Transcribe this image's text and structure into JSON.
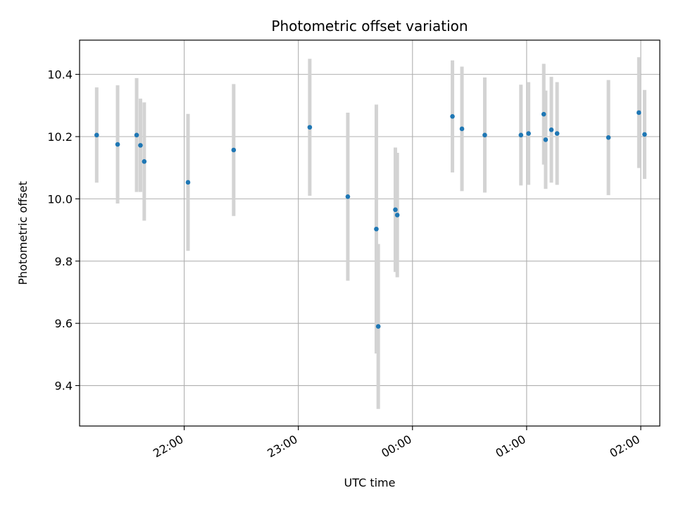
{
  "chart_data": {
    "type": "scatter",
    "title": "Photometric offset variation",
    "xlabel": "UTC time",
    "ylabel": "Photometric offset",
    "x_axis_type": "time",
    "x_range": [
      "21:05",
      "02:10"
    ],
    "ylim": [
      9.27,
      10.51
    ],
    "x_ticks": [
      "22:00",
      "23:00",
      "00:00",
      "01:00",
      "02:00"
    ],
    "y_ticks": [
      "9.4",
      "9.6",
      "9.8",
      "10.0",
      "10.2",
      "10.4"
    ],
    "grid": true,
    "point_color": "#1f77b4",
    "errorbar_color": "#d3d3d3",
    "points": [
      {
        "time": "21:14",
        "y": 10.205,
        "err": 0.153
      },
      {
        "time": "21:25",
        "y": 10.175,
        "err": 0.19
      },
      {
        "time": "21:35",
        "y": 10.205,
        "err": 0.183
      },
      {
        "time": "21:37",
        "y": 10.172,
        "err": 0.15
      },
      {
        "time": "21:39",
        "y": 10.12,
        "err": 0.19
      },
      {
        "time": "22:02",
        "y": 10.053,
        "err": 0.22
      },
      {
        "time": "22:26",
        "y": 10.157,
        "err": 0.212
      },
      {
        "time": "23:06",
        "y": 10.23,
        "err": 0.22
      },
      {
        "time": "23:26",
        "y": 10.007,
        "err": 0.27
      },
      {
        "time": "23:41",
        "y": 9.903,
        "err": 0.4
      },
      {
        "time": "23:42",
        "y": 9.59,
        "err": 0.265
      },
      {
        "time": "23:51",
        "y": 9.965,
        "err": 0.2
      },
      {
        "time": "23:52",
        "y": 9.948,
        "err": 0.2
      },
      {
        "time": "00:21",
        "y": 10.265,
        "err": 0.18
      },
      {
        "time": "00:26",
        "y": 10.225,
        "err": 0.2
      },
      {
        "time": "00:38",
        "y": 10.205,
        "err": 0.185
      },
      {
        "time": "00:57",
        "y": 10.205,
        "err": 0.162
      },
      {
        "time": "01:01",
        "y": 10.21,
        "err": 0.165
      },
      {
        "time": "01:09",
        "y": 10.272,
        "err": 0.162
      },
      {
        "time": "01:10",
        "y": 10.19,
        "err": 0.158
      },
      {
        "time": "01:13",
        "y": 10.222,
        "err": 0.17
      },
      {
        "time": "01:16",
        "y": 10.21,
        "err": 0.165
      },
      {
        "time": "01:43",
        "y": 10.197,
        "err": 0.185
      },
      {
        "time": "01:59",
        "y": 10.277,
        "err": 0.178
      },
      {
        "time": "02:02",
        "y": 10.207,
        "err": 0.143
      }
    ]
  }
}
